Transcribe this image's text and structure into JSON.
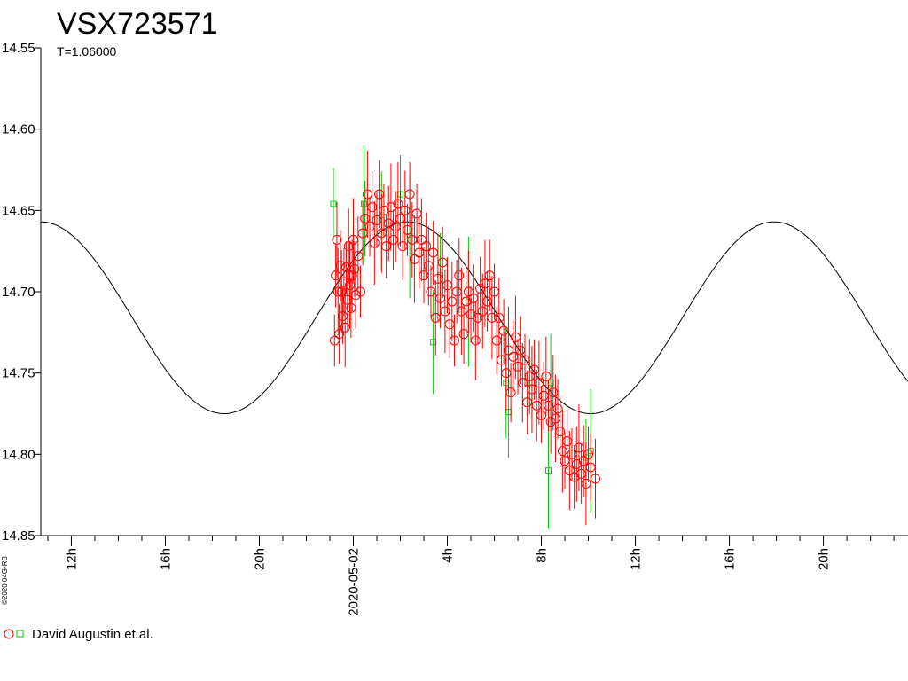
{
  "chart_data": {
    "type": "scatter",
    "title": "VSX723571",
    "subtitle": "T=1.06000",
    "copyright": "©2020 04G-RB",
    "y_axis": {
      "reversed": true,
      "ylim": [
        14.55,
        14.85
      ],
      "ticks": [
        "14.55",
        "14.60",
        "14.65",
        "14.70",
        "14.75",
        "14.80",
        "14.85"
      ]
    },
    "x_axis": {
      "range_hours": [
        -13.3,
        23.6
      ],
      "tick_labels": [
        {
          "hour": -12,
          "label": "12h"
        },
        {
          "hour": -8,
          "label": "16h"
        },
        {
          "hour": -4,
          "label": "20h"
        },
        {
          "hour": 0,
          "label": "2020-05-02"
        },
        {
          "hour": 4,
          "label": "4h"
        },
        {
          "hour": 8,
          "label": "8h"
        },
        {
          "hour": 12,
          "label": "12h"
        },
        {
          "hour": 16,
          "label": "16h"
        },
        {
          "hour": 20,
          "label": "20h"
        }
      ]
    },
    "model_curve": {
      "type": "sine",
      "period_hours": 15.6,
      "max_brightness_hour": 2.3,
      "mean_mag": 14.716,
      "amplitude": 0.059
    },
    "series": [
      {
        "name": "David Augustin et al.",
        "color_circle": "#ff0000",
        "color_square": "#00cc00",
        "points": [
          [
            -0.8,
            14.73
          ],
          [
            -0.75,
            14.69
          ],
          [
            -0.7,
            14.668
          ],
          [
            -0.65,
            14.7
          ],
          [
            -0.6,
            14.726
          ],
          [
            -0.55,
            14.684
          ],
          [
            -0.5,
            14.7
          ],
          [
            -0.45,
            14.715
          ],
          [
            -0.4,
            14.694
          ],
          [
            -0.35,
            14.722
          ],
          [
            -0.3,
            14.685
          ],
          [
            -0.25,
            14.705
          ],
          [
            -0.2,
            14.672
          ],
          [
            -0.15,
            14.696
          ],
          [
            -0.1,
            14.71
          ],
          [
            -0.05,
            14.69
          ],
          [
            0.0,
            14.668
          ],
          [
            0.05,
            14.686
          ],
          [
            0.1,
            14.702
          ],
          [
            0.2,
            14.678
          ],
          [
            0.3,
            14.7
          ],
          [
            0.4,
            14.664
          ],
          [
            0.5,
            14.655
          ],
          [
            0.6,
            14.64
          ],
          [
            0.7,
            14.66
          ],
          [
            0.8,
            14.648
          ],
          [
            0.9,
            14.67
          ],
          [
            1.0,
            14.656
          ],
          [
            1.1,
            14.64
          ],
          [
            1.2,
            14.664
          ],
          [
            1.3,
            14.65
          ],
          [
            1.4,
            14.672
          ],
          [
            1.5,
            14.658
          ],
          [
            1.6,
            14.648
          ],
          [
            1.7,
            14.668
          ],
          [
            1.8,
            14.66
          ],
          [
            1.9,
            14.646
          ],
          [
            2.0,
            14.655
          ],
          [
            2.1,
            14.672
          ],
          [
            2.2,
            14.65
          ],
          [
            2.3,
            14.662
          ],
          [
            2.4,
            14.64
          ],
          [
            2.5,
            14.668
          ],
          [
            2.6,
            14.68
          ],
          [
            2.7,
            14.652
          ],
          [
            2.8,
            14.676
          ],
          [
            2.9,
            14.668
          ],
          [
            3.0,
            14.69
          ],
          [
            3.1,
            14.672
          ],
          [
            3.2,
            14.684
          ],
          [
            3.3,
            14.7
          ],
          [
            3.4,
            14.676
          ],
          [
            3.5,
            14.716
          ],
          [
            3.6,
            14.692
          ],
          [
            3.7,
            14.704
          ],
          [
            3.8,
            14.682
          ],
          [
            3.9,
            14.712
          ],
          [
            4.0,
            14.696
          ],
          [
            4.1,
            14.72
          ],
          [
            4.2,
            14.706
          ],
          [
            4.3,
            14.73
          ],
          [
            4.4,
            14.7
          ],
          [
            4.5,
            14.69
          ],
          [
            4.6,
            14.712
          ],
          [
            4.7,
            14.726
          ],
          [
            4.8,
            14.706
          ],
          [
            4.9,
            14.7
          ],
          [
            5.0,
            14.714
          ],
          [
            5.1,
            14.704
          ],
          [
            5.2,
            14.73
          ],
          [
            5.3,
            14.716
          ],
          [
            5.4,
            14.698
          ],
          [
            5.5,
            14.712
          ],
          [
            5.6,
            14.695
          ],
          [
            5.7,
            14.706
          ],
          [
            5.8,
            14.69
          ],
          [
            5.9,
            14.716
          ],
          [
            6.0,
            14.7
          ],
          [
            6.1,
            14.73
          ],
          [
            6.2,
            14.716
          ],
          [
            6.3,
            14.742
          ],
          [
            6.4,
            14.724
          ],
          [
            6.5,
            14.75
          ],
          [
            6.6,
            14.736
          ],
          [
            6.7,
            14.762
          ],
          [
            6.8,
            14.74
          ],
          [
            6.9,
            14.728
          ],
          [
            7.0,
            14.746
          ],
          [
            7.1,
            14.736
          ],
          [
            7.2,
            14.756
          ],
          [
            7.3,
            14.742
          ],
          [
            7.4,
            14.768
          ],
          [
            7.5,
            14.752
          ],
          [
            7.6,
            14.76
          ],
          [
            7.7,
            14.748
          ],
          [
            7.8,
            14.77
          ],
          [
            7.9,
            14.756
          ],
          [
            8.0,
            14.776
          ],
          [
            8.1,
            14.764
          ],
          [
            8.2,
            14.752
          ],
          [
            8.3,
            14.77
          ],
          [
            8.4,
            14.78
          ],
          [
            8.5,
            14.762
          ],
          [
            8.6,
            14.778
          ],
          [
            8.7,
            14.772
          ],
          [
            8.8,
            14.786
          ],
          [
            8.9,
            14.798
          ],
          [
            9.0,
            14.804
          ],
          [
            9.1,
            14.792
          ],
          [
            9.2,
            14.81
          ],
          [
            9.3,
            14.8
          ],
          [
            9.4,
            14.814
          ],
          [
            9.5,
            14.806
          ],
          [
            9.6,
            14.796
          ],
          [
            9.7,
            14.812
          ],
          [
            9.8,
            14.804
          ],
          [
            9.9,
            14.818
          ],
          [
            10.0,
            14.8
          ],
          [
            10.1,
            14.808
          ],
          [
            10.3,
            14.815
          ]
        ],
        "green_points": [
          [
            -0.85,
            14.646
          ],
          [
            0.45,
            14.646
          ],
          [
            1.2,
            14.656
          ],
          [
            2.0,
            14.64
          ],
          [
            2.4,
            14.666
          ],
          [
            3.4,
            14.731
          ],
          [
            3.7,
            14.69
          ],
          [
            4.9,
            14.706
          ],
          [
            6.5,
            14.756
          ],
          [
            6.6,
            14.774
          ],
          [
            7.6,
            14.756
          ],
          [
            8.3,
            14.81
          ],
          [
            8.4,
            14.756
          ],
          [
            9.9,
            14.802
          ],
          [
            10.1,
            14.798
          ]
        ]
      }
    ]
  }
}
